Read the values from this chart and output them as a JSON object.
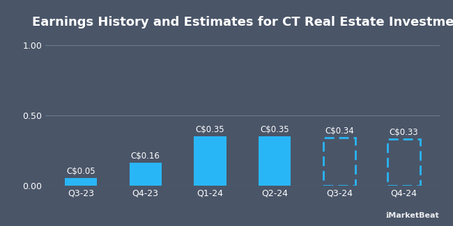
{
  "title": "Earnings History and Estimates for CT Real Estate Investment",
  "categories": [
    "Q3-23",
    "Q4-23",
    "Q1-24",
    "Q2-24",
    "Q3-24",
    "Q4-24"
  ],
  "values": [
    0.05,
    0.16,
    0.35,
    0.35,
    0.34,
    0.33
  ],
  "labels": [
    "C$0.05",
    "C$0.16",
    "C$0.35",
    "C$0.35",
    "C$0.34",
    "C$0.33"
  ],
  "is_estimate": [
    false,
    false,
    false,
    false,
    true,
    true
  ],
  "bar_color_solid": "#29b6f6",
  "bar_color_estimate": "#29b6f6",
  "background_color": "#4a5568",
  "grid_color": "#6b7a8d",
  "text_color": "#ffffff",
  "ylim": [
    0,
    1.0
  ],
  "yticks": [
    0.0,
    0.5,
    1.0
  ],
  "ytick_labels": [
    "0.00",
    "0.50",
    "1.00"
  ],
  "title_fontsize": 13,
  "label_fontsize": 8.5,
  "tick_fontsize": 9,
  "watermark": "MarketBeat",
  "bar_width": 0.5
}
